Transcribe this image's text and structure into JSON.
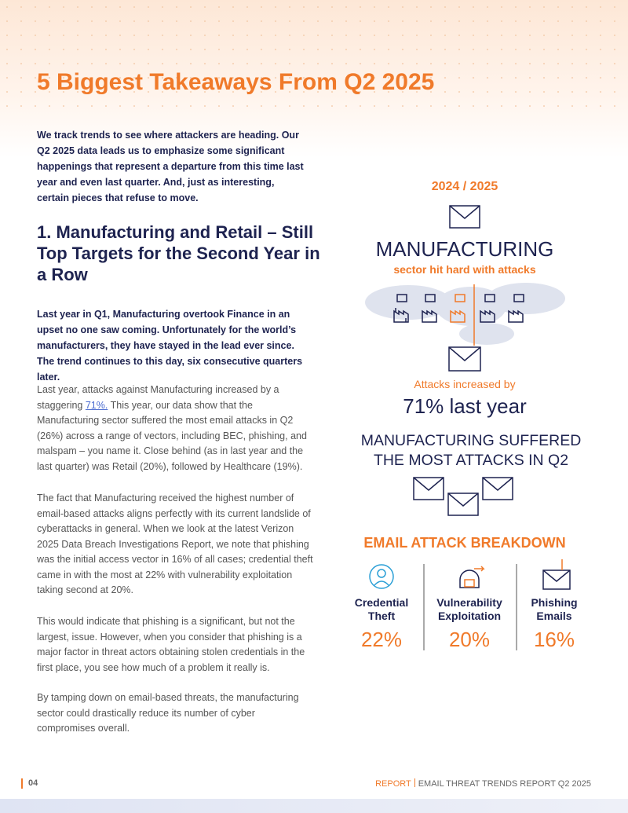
{
  "header": {
    "title": "5 Biggest Takeaways From Q2 2025"
  },
  "intro": "We track trends to see where attackers are heading. Our Q2 2025 data leads us to emphasize some significant happenings that represent a departure from this time last year and even last quarter. And, just as interesting, certain pieces that refuse to move.",
  "section": {
    "heading": "1. Manufacturing and Retail – Still Top Targets for the Second Year in a Row",
    "lead": "Last year in Q1, Manufacturing overtook Finance in an upset no one saw coming. Unfortunately for the world’s manufacturers, they have stayed in the lead ever since. The trend continues to this day, six consecutive quarters later.",
    "paragraphs": [
      {
        "before": "Last year, attacks against Manufacturing increased by a staggering ",
        "link": "71%.",
        "after": " This year, our data show that the Manufacturing sector suffered the most email attacks in Q2 (26%) across a range of vectors, including BEC, phishing, and malspam – you name it. Close behind (as in last year and the last quarter) was Retail (20%), followed by Healthcare (19%)."
      },
      {
        "text": "The fact that Manufacturing received the highest number of email-based attacks aligns perfectly with its current landslide of cyberattacks in general. When we look at the latest Verizon 2025 Data Breach Investigations Report, we note that phishing was the initial access vector in 16% of all cases; credential theft came in with the most at 22% with vulnerability exploitation taking second at 20%."
      },
      {
        "text": "This would indicate that phishing is a significant, but not the largest, issue. However, when you consider that phishing is a major factor in threat actors obtaining stolen credentials in the first place, you see how much of a problem it really is."
      },
      {
        "text": "By tamping down on email-based threats, the manufacturing sector could drastically reduce its number of cyber compromises overall."
      }
    ]
  },
  "sidebar": {
    "period": "2024 / 2025",
    "headline": "MANUFACTURING",
    "subhead": "sector hit hard with attacks",
    "increase_label": "Attacks increased by",
    "increase_value": "71% last year",
    "most_attacks": "MANUFACTURING SUFFERED THE MOST ATTACKS IN Q2",
    "breakdown_title": "EMAIL ATTACK BREAKDOWN",
    "breakdown": [
      {
        "label": "Credential Theft",
        "value": "22%"
      },
      {
        "label": "Vulnerability Exploitation",
        "value": "20%"
      },
      {
        "label": "Phishing Emails",
        "value": "16%"
      }
    ]
  },
  "footer": {
    "page": "04",
    "report": "REPORT",
    "title": "EMAIL THREAT TRENDS REPORT Q2 2025"
  }
}
